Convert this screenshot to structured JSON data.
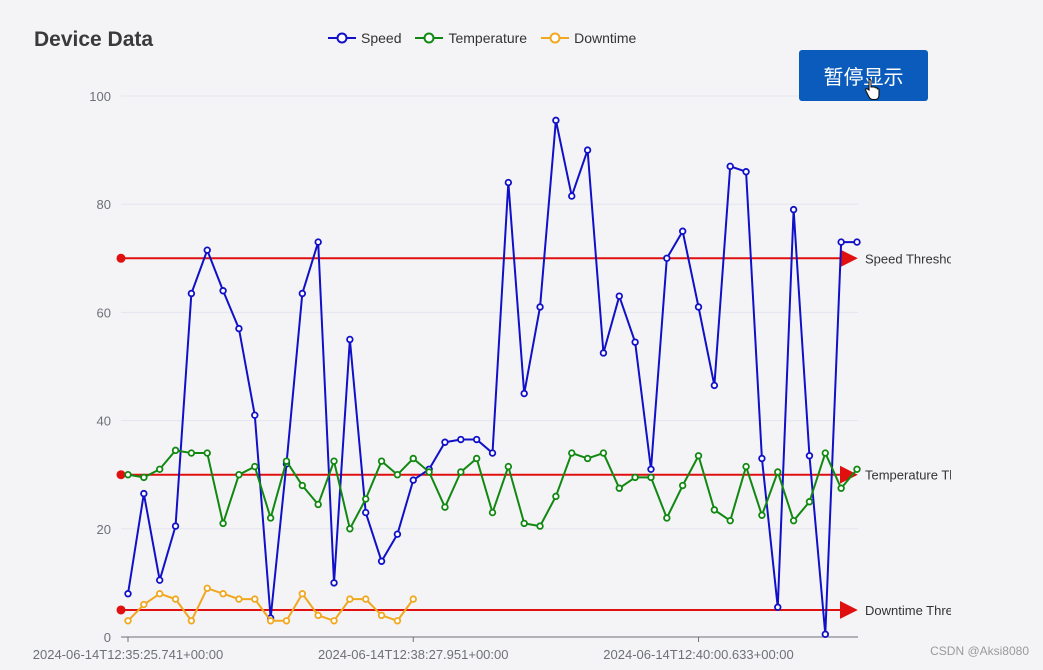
{
  "chart_data": {
    "type": "line",
    "title": "Device Data",
    "ylim": [
      0,
      100
    ],
    "yticks": [
      0,
      20,
      40,
      60,
      80,
      100
    ],
    "x_tick_labels": [
      {
        "index": 0,
        "label": "2024-06-14T12:35:25.741+00:00"
      },
      {
        "index": 18,
        "label": "2024-06-14T12:38:27.951+00:00"
      },
      {
        "index": 36,
        "label": "2024-06-14T12:40:00.633+00:00"
      }
    ],
    "series": [
      {
        "name": "Speed",
        "color": "#1010c8",
        "values": [
          8,
          26.5,
          10.5,
          20.5,
          63.5,
          71.5,
          64,
          57,
          41,
          3.5,
          32,
          63.5,
          73,
          10,
          55,
          23,
          14,
          19,
          29,
          31,
          36,
          36.5,
          36.5,
          34,
          84,
          45,
          61,
          95.5,
          81.5,
          90,
          52.5,
          63,
          54.5,
          31,
          70,
          75,
          61,
          46.5,
          87,
          86,
          33,
          5.5,
          79,
          33.5,
          0.5,
          73,
          73
        ]
      },
      {
        "name": "Temperature",
        "color": "#118811",
        "values": [
          30,
          29.5,
          31,
          34.5,
          34,
          34,
          21,
          30,
          31.5,
          22,
          32.5,
          28,
          24.5,
          32.5,
          20,
          25.5,
          32.5,
          30,
          33,
          30.5,
          24,
          30.5,
          33,
          23,
          31.5,
          21,
          20.5,
          26,
          34,
          33,
          34,
          27.5,
          29.5,
          29.5,
          22,
          28,
          33.5,
          23.5,
          21.5,
          31.5,
          22.5,
          30.5,
          21.5,
          25,
          34,
          27.5,
          31
        ]
      },
      {
        "name": "Downtime",
        "color": "#f0a820",
        "values": [
          3,
          6,
          8,
          7,
          3,
          9,
          8,
          7,
          7,
          3,
          3,
          8,
          4,
          3,
          7,
          7,
          4,
          3,
          7
        ]
      }
    ],
    "thresholds": [
      {
        "label": "Speed Threshold",
        "value": 70
      },
      {
        "label": "Temperature Threshold",
        "value": 30
      },
      {
        "label": "Downtime Threshold",
        "value": 5
      }
    ],
    "threshold_color": "#e01010",
    "grid": true,
    "legend_position": "top-center"
  },
  "controls": {
    "pause_label": "暂停显示"
  },
  "watermark": "CSDN @Aksi8080"
}
